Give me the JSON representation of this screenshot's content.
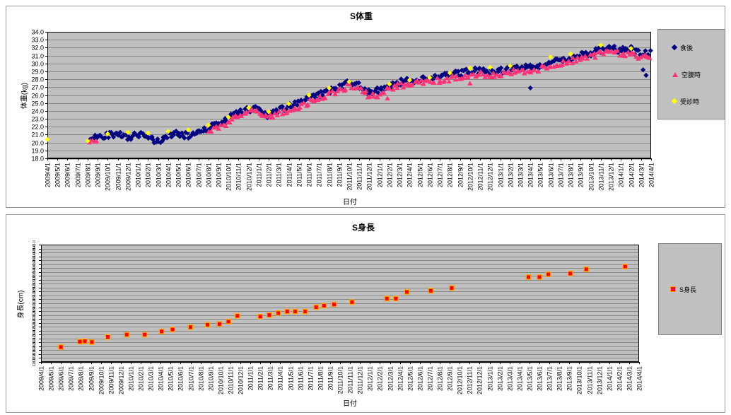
{
  "page": {
    "background": "#ffffff",
    "plot_background": "#c0c0c0",
    "gridline_color": "#878787"
  },
  "chart_data": [
    {
      "type": "scatter",
      "title": "S体重",
      "xlabel": "日付",
      "ylabel": "体重(kg)",
      "ylim": [
        18.0,
        34.0
      ],
      "ytick_step": 1.0,
      "ytick_decimals": 1,
      "grid": "horizontal",
      "legend_position": "right",
      "x_tick_labels": [
        "2009/4/1",
        "2009/5/1",
        "2009/6/1",
        "2009/7/1",
        "2009/8/1",
        "2009/9/1",
        "2009/10/1",
        "2009/11/1",
        "2009/12/1",
        "2010/1/1",
        "2010/2/1",
        "2010/3/1",
        "2010/4/1",
        "2010/5/1",
        "2010/6/1",
        "2010/7/1",
        "2010/8/1",
        "2010/9/1",
        "2010/10/1",
        "2010/11/1",
        "2010/12/1",
        "2011/1/1",
        "2011/2/1",
        "2011/3/1",
        "2011/4/1",
        "2011/5/1",
        "2011/6/1",
        "2011/7/1",
        "2011/8/1",
        "2011/9/1",
        "2011/10/1",
        "2011/11/1",
        "2011/12/1",
        "2012/1/1",
        "2012/2/1",
        "2012/3/1",
        "2012/4/1",
        "2012/5/1",
        "2012/6/1",
        "2012/7/1",
        "2012/8/1",
        "2012/9/1",
        "2012/10/1",
        "2012/11/1",
        "2012/12/1",
        "2013/1/1",
        "2013/2/1",
        "2013/3/1",
        "2013/4/1",
        "2013/5/1",
        "2013/6/1",
        "2013/7/1",
        "2013/8/1",
        "2013/9/1",
        "2013/10/1",
        "2013/11/1",
        "2013/12/1",
        "2014/1/1",
        "2014/2/1",
        "2014/3/1",
        "2014/4/1"
      ],
      "series": [
        {
          "name": "食後",
          "marker": "diamond",
          "color": "#000080",
          "cloud": {
            "points_per_month": 7,
            "y_spread": 0.8
          },
          "trend_anchors": [
            [
              4,
              20.1
            ],
            [
              5,
              20.8
            ],
            [
              6,
              21.0
            ],
            [
              7,
              21.1
            ],
            [
              8,
              20.7
            ],
            [
              9,
              21.0
            ],
            [
              10,
              20.6
            ],
            [
              11,
              20.1
            ],
            [
              12,
              20.9
            ],
            [
              13,
              21.2
            ],
            [
              14,
              20.8
            ],
            [
              15,
              21.4
            ],
            [
              16,
              21.9
            ],
            [
              17,
              22.3
            ],
            [
              18,
              23.0
            ],
            [
              19,
              23.8
            ],
            [
              20,
              24.2
            ],
            [
              21,
              24.4
            ],
            [
              22,
              23.4
            ],
            [
              23,
              24.2
            ],
            [
              24,
              24.5
            ],
            [
              25,
              25.0
            ],
            [
              26,
              25.5
            ],
            [
              27,
              26.0
            ],
            [
              28,
              26.5
            ],
            [
              29,
              27.0
            ],
            [
              30,
              27.6
            ],
            [
              31,
              27.2
            ],
            [
              32,
              26.4
            ],
            [
              33,
              26.6
            ],
            [
              34,
              27.3
            ],
            [
              35,
              27.6
            ],
            [
              36,
              27.8
            ],
            [
              37,
              28.1
            ],
            [
              38,
              28.0
            ],
            [
              39,
              28.3
            ],
            [
              40,
              28.5
            ],
            [
              41,
              28.8
            ],
            [
              42,
              29.0
            ],
            [
              43,
              29.1
            ],
            [
              44,
              29.0
            ],
            [
              45,
              29.1
            ],
            [
              46,
              29.4
            ],
            [
              47,
              29.4
            ],
            [
              48,
              29.5
            ],
            [
              49,
              29.8
            ],
            [
              50,
              30.1
            ],
            [
              51,
              30.4
            ],
            [
              52,
              30.7
            ],
            [
              53,
              31.1
            ],
            [
              54,
              31.3
            ],
            [
              55,
              31.7
            ],
            [
              56,
              31.9
            ],
            [
              57,
              31.6
            ],
            [
              58,
              31.8
            ],
            [
              59,
              31.1
            ],
            [
              60,
              31.4
            ]
          ],
          "outliers": [
            [
              48,
              26.9
            ],
            [
              59.2,
              29.2
            ],
            [
              59.5,
              28.5
            ]
          ]
        },
        {
          "name": "空腹時",
          "marker": "triangle",
          "color": "#ff3377",
          "cloud": {
            "points_per_month": 5,
            "y_spread": 0.7
          },
          "trend_anchors": [
            [
              4,
              19.8
            ],
            [
              5,
              20.3
            ],
            [
              16,
              21.5
            ],
            [
              17,
              21.9
            ],
            [
              18,
              22.6
            ],
            [
              19,
              23.4
            ],
            [
              20,
              23.8
            ],
            [
              21,
              24.0
            ],
            [
              22,
              23.1
            ],
            [
              23,
              23.8
            ],
            [
              24,
              24.1
            ],
            [
              25,
              24.6
            ],
            [
              26,
              25.1
            ],
            [
              27,
              25.6
            ],
            [
              28,
              26.1
            ],
            [
              29,
              26.6
            ],
            [
              30,
              27.2
            ],
            [
              31,
              26.8
            ],
            [
              32,
              25.9
            ],
            [
              33,
              26.1
            ],
            [
              34,
              26.9
            ],
            [
              35,
              27.2
            ],
            [
              36,
              27.4
            ],
            [
              37,
              27.7
            ],
            [
              38,
              27.6
            ],
            [
              39,
              27.9
            ],
            [
              40,
              28.1
            ],
            [
              41,
              28.4
            ],
            [
              42,
              28.6
            ],
            [
              43,
              28.7
            ],
            [
              44,
              28.6
            ],
            [
              45,
              28.7
            ],
            [
              46,
              29.0
            ],
            [
              47,
              29.0
            ],
            [
              48,
              29.1
            ],
            [
              49,
              29.4
            ],
            [
              50,
              29.7
            ],
            [
              51,
              30.0
            ],
            [
              52,
              30.3
            ],
            [
              53,
              30.7
            ],
            [
              54,
              30.9
            ],
            [
              55,
              31.3
            ],
            [
              56,
              31.5
            ],
            [
              57,
              31.2
            ],
            [
              58,
              31.4
            ],
            [
              59,
              30.8
            ],
            [
              60,
              31.0
            ]
          ],
          "outliers": [
            [
              42,
              27.5
            ],
            [
              33.8,
              25.6
            ]
          ]
        },
        {
          "name": "受診時",
          "marker": "diamond",
          "color": "#ffff00",
          "points": [
            [
              0,
              20.4
            ],
            [
              4,
              20.2
            ],
            [
              6,
              21.1
            ],
            [
              8,
              21.3
            ],
            [
              10,
              21.2
            ],
            [
              12,
              21.4
            ],
            [
              14,
              21.6
            ],
            [
              16,
              22.2
            ],
            [
              18,
              23.2
            ],
            [
              20,
              24.4
            ],
            [
              22,
              23.9
            ],
            [
              24,
              24.9
            ],
            [
              26,
              26.0
            ],
            [
              28,
              26.9
            ],
            [
              30,
              27.7
            ],
            [
              34,
              27.4
            ],
            [
              36,
              27.9
            ],
            [
              38,
              28.2
            ],
            [
              40,
              28.8
            ],
            [
              42,
              29.4
            ],
            [
              44,
              29.5
            ],
            [
              46,
              29.7
            ],
            [
              50,
              30.8
            ],
            [
              52,
              31.2
            ],
            [
              55,
              32.3
            ],
            [
              58,
              31.9
            ]
          ]
        }
      ]
    },
    {
      "type": "scatter",
      "title": "S身長",
      "xlabel": "日付",
      "ylabel": "身長(cm)",
      "ylim": [
        116.0,
        146.0
      ],
      "ytick_step": 1.0,
      "ytick_decimals": 1,
      "grid": "horizontal",
      "legend_position": "right",
      "x_tick_labels": [
        "2009/4/1",
        "2009/5/1",
        "2009/6/1",
        "2009/7/1",
        "2009/8/1",
        "2009/9/1",
        "2009/10/1",
        "2009/11/1",
        "2009/12/1",
        "2010/1/1",
        "2010/2/1",
        "2010/3/1",
        "2010/4/1",
        "2010/5/1",
        "2010/6/1",
        "2010/7/1",
        "2010/8/1",
        "2010/9/1",
        "2010/10/1",
        "2010/11/1",
        "2010/12/1",
        "2011/1/1",
        "2011/2/1",
        "2011/3/1",
        "2011/4/1",
        "2011/5/1",
        "2011/6/1",
        "2011/7/1",
        "2011/8/1",
        "2011/9/1",
        "2011/10/1",
        "2011/11/1",
        "2011/12/1",
        "2012/1/1",
        "2012/2/1",
        "2012/3/1",
        "2012/4/1",
        "2012/5/1",
        "2012/6/1",
        "2012/7/1",
        "2012/8/1",
        "2012/9/1",
        "2012/10/1",
        "2012/11/1",
        "2012/12/1",
        "2013/1/1",
        "2013/2/1",
        "2013/3/1",
        "2013/4/1",
        "2013/5/1",
        "2013/6/1",
        "2013/7/1",
        "2013/8/1",
        "2013/9/1",
        "2013/10/1",
        "2013/11/1",
        "2013/12/1",
        "2014/1/1",
        "2014/2/1",
        "2014/3/1",
        "2014/4/1"
      ],
      "series": [
        {
          "name": "S身長",
          "marker": "square",
          "color": "#ff0000",
          "marker_border": "#ffa500",
          "points": [
            [
              2,
              119.8
            ],
            [
              3.9,
              121.2
            ],
            [
              4.4,
              121.3
            ],
            [
              5.1,
              121.1
            ],
            [
              6.7,
              122.4
            ],
            [
              8.6,
              123.0
            ],
            [
              10.4,
              123.0
            ],
            [
              12.1,
              123.8
            ],
            [
              13.2,
              124.3
            ],
            [
              15,
              124.9
            ],
            [
              16.7,
              125.5
            ],
            [
              17.9,
              125.7
            ],
            [
              18.8,
              126.3
            ],
            [
              19.7,
              127.8
            ],
            [
              22,
              127.6
            ],
            [
              22.9,
              128.0
            ],
            [
              23.8,
              128.5
            ],
            [
              24.7,
              128.9
            ],
            [
              25.5,
              128.9
            ],
            [
              26.5,
              128.9
            ],
            [
              27.6,
              130.0
            ],
            [
              28.4,
              130.4
            ],
            [
              29.4,
              130.7
            ],
            [
              31.2,
              131.3
            ],
            [
              34.7,
              132.2
            ],
            [
              35.6,
              132.2
            ],
            [
              36.7,
              133.9
            ],
            [
              39.1,
              134.2
            ],
            [
              41.2,
              134.9
            ],
            [
              48.9,
              137.7
            ],
            [
              50,
              137.7
            ],
            [
              50.9,
              138.4
            ],
            [
              53.1,
              138.6
            ],
            [
              54.7,
              139.7
            ],
            [
              58.6,
              140.4
            ]
          ]
        }
      ]
    }
  ]
}
